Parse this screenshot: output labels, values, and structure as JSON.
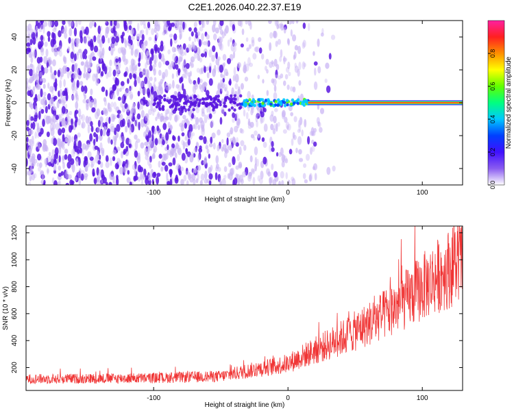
{
  "title": "C2E1.2026.040.22.37.E19",
  "colors": {
    "accent_red": "#f03535",
    "signal_purple": "#5b17e0",
    "faint_purple": "#c9b4f4",
    "colorbar_stops": [
      "#ffffff",
      "#8a5cf0",
      "#4010ff",
      "#0040ff",
      "#00c8ff",
      "#00ff80",
      "#60ff00",
      "#ffff00",
      "#ff9000",
      "#ff2020",
      "#ff20a0"
    ]
  },
  "chart_data": [
    {
      "type": "heatmap",
      "xlabel": "Height of straight line (km)",
      "ylabel": "Frequency (Hz)",
      "xlim": [
        -195,
        130
      ],
      "ylim": [
        -50,
        50
      ],
      "x_ticks": [
        -100,
        0,
        100
      ],
      "x_tick_labels": [
        "-100",
        "0",
        "100"
      ],
      "y_ticks": [
        -40,
        -20,
        0,
        20,
        40
      ],
      "y_tick_labels": [
        "-40",
        "-20",
        "0",
        "20",
        "40"
      ],
      "grid": false,
      "colorbar": {
        "label": "Normalized spectral amplitude",
        "range": [
          0,
          1
        ],
        "ticks": [
          0.0,
          0.2,
          0.4,
          0.6,
          0.8
        ],
        "tick_labels": [
          "0.0",
          "0.2",
          "0.4",
          "0.6",
          "0.8"
        ]
      },
      "description_values": {
        "noise_region_x": [
          -195,
          15
        ],
        "carrier_frequency": 0,
        "carrier_start_x": 15,
        "carrier_end_x": 130,
        "carrier_amplitude": 1.0
      }
    },
    {
      "type": "line",
      "xlabel": "Height of straight line (km)",
      "ylabel": "SNR (10 * v/v)",
      "xlim": [
        -195,
        130
      ],
      "ylim": [
        30,
        1250
      ],
      "x_ticks": [
        -100,
        0,
        100
      ],
      "x_tick_labels": [
        "-100",
        "0",
        "100"
      ],
      "y_ticks": [
        200,
        400,
        600,
        800,
        1000,
        1200
      ],
      "y_tick_labels": [
        "200",
        "400",
        "600",
        "800",
        "1000",
        "1200"
      ],
      "grid": false,
      "series": [
        {
          "color": "#f03535",
          "x": [
            -195,
            -150,
            -100,
            -50,
            -30,
            -10,
            0,
            10,
            30,
            50,
            70,
            90,
            110,
            130
          ],
          "y": [
            115,
            118,
            122,
            135,
            175,
            210,
            230,
            280,
            370,
            470,
            580,
            720,
            870,
            1000
          ]
        }
      ]
    }
  ]
}
